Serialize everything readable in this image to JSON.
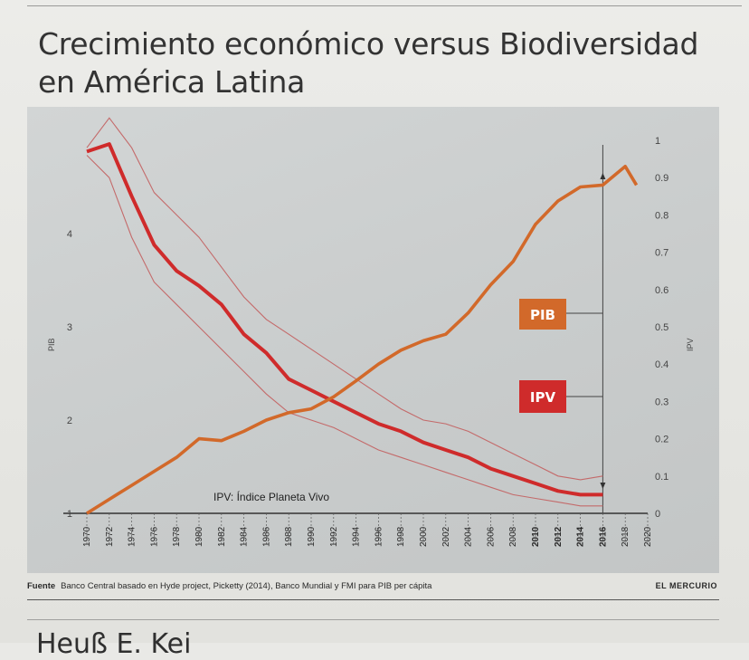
{
  "header": {
    "title_line1": "Crecimiento económico versus Biodiversidad",
    "title_line2": "en América Latina"
  },
  "legend": {
    "pib": "PIB",
    "ipv": "IPV",
    "ipv_note": "IPV: Índice Planeta Vivo"
  },
  "footer": {
    "label": "Fuente",
    "text": "Banco Central basado en Hyde project, Picketty (2014), Banco Mundial y FMI para PIB per cápita",
    "brand": "EL MERCURIO"
  },
  "below_text": "Heuß E. Kei",
  "colors": {
    "pib": "#d2692a",
    "ipv": "#cf2b2b",
    "ipv_band": "#c46a6a",
    "axis": "#333333"
  },
  "chart_data": {
    "type": "line",
    "xlabel": "",
    "ylabel_left": "PIB",
    "ylabel_right": "IPV",
    "x_ticks": [
      1970,
      1972,
      1974,
      1976,
      1978,
      1980,
      1982,
      1984,
      1986,
      1988,
      1990,
      1992,
      1994,
      1996,
      1998,
      2000,
      2002,
      2004,
      2006,
      2008,
      2010,
      2012,
      2014,
      2016,
      2018,
      2020
    ],
    "xlim": [
      1969,
      2021
    ],
    "ylim_left": [
      1,
      5
    ],
    "y_ticks_left": [
      1,
      2,
      3,
      4
    ],
    "ylim_right": [
      0,
      1
    ],
    "y_ticks_right": [
      0,
      0.1,
      0.2,
      0.3,
      0.4,
      0.5,
      0.6,
      0.7,
      0.8,
      0.9,
      1
    ],
    "y_ticks_right_labels": [
      "0",
      "0.1",
      "0.2",
      "0.3",
      "0.4",
      "0.5",
      "0.6",
      "0.7",
      "0.8",
      "0.9",
      "1"
    ],
    "marker_year": 2016,
    "series": [
      {
        "name": "PIB",
        "axis": "left",
        "x": [
          1970,
          1972,
          1974,
          1976,
          1978,
          1980,
          1982,
          1984,
          1986,
          1988,
          1990,
          1992,
          1994,
          1996,
          1998,
          2000,
          2002,
          2004,
          2006,
          2008,
          2010,
          2012,
          2014,
          2016,
          2018,
          2019
        ],
        "values": [
          1.0,
          1.15,
          1.3,
          1.45,
          1.6,
          1.8,
          1.78,
          1.88,
          2.0,
          2.08,
          2.12,
          2.25,
          2.42,
          2.6,
          2.75,
          2.85,
          2.92,
          3.15,
          3.45,
          3.7,
          4.1,
          4.35,
          4.5,
          4.52,
          4.72,
          4.52
        ]
      },
      {
        "name": "IPV",
        "axis": "right",
        "x": [
          1970,
          1972,
          1974,
          1976,
          1978,
          1980,
          1982,
          1984,
          1986,
          1988,
          1990,
          1992,
          1994,
          1996,
          1998,
          2000,
          2002,
          2004,
          2006,
          2008,
          2010,
          2012,
          2014,
          2016
        ],
        "values": [
          0.97,
          0.99,
          0.85,
          0.72,
          0.65,
          0.61,
          0.56,
          0.48,
          0.43,
          0.36,
          0.33,
          0.3,
          0.27,
          0.24,
          0.22,
          0.19,
          0.17,
          0.15,
          0.12,
          0.1,
          0.08,
          0.06,
          0.05,
          0.05
        ]
      },
      {
        "axis": "right",
        "x": [
          1970,
          1972,
          1974,
          1976,
          1978,
          1980,
          1982,
          1984,
          1986,
          1988,
          1990,
          1992,
          1994,
          1996,
          1998,
          2000,
          2002,
          2004,
          2006,
          2008,
          2010,
          2012,
          2014,
          2016
        ],
        "values": [
          0.98,
          1.06,
          0.98,
          0.86,
          0.8,
          0.74,
          0.66,
          0.58,
          0.52,
          0.48,
          0.44,
          0.4,
          0.36,
          0.32,
          0.28,
          0.25,
          0.24,
          0.22,
          0.19,
          0.16,
          0.13,
          0.1,
          0.09,
          0.1
        ]
      },
      {
        "axis": "right",
        "x": [
          1970,
          1972,
          1974,
          1976,
          1978,
          1980,
          1982,
          1984,
          1986,
          1988,
          1990,
          1992,
          1994,
          1996,
          1998,
          2000,
          2002,
          2004,
          2006,
          2008,
          2010,
          2012,
          2014,
          2016
        ],
        "values": [
          0.96,
          0.9,
          0.74,
          0.62,
          0.56,
          0.5,
          0.44,
          0.38,
          0.32,
          0.27,
          0.25,
          0.23,
          0.2,
          0.17,
          0.15,
          0.13,
          0.11,
          0.09,
          0.07,
          0.05,
          0.04,
          0.03,
          0.02,
          0.02
        ]
      }
    ]
  }
}
